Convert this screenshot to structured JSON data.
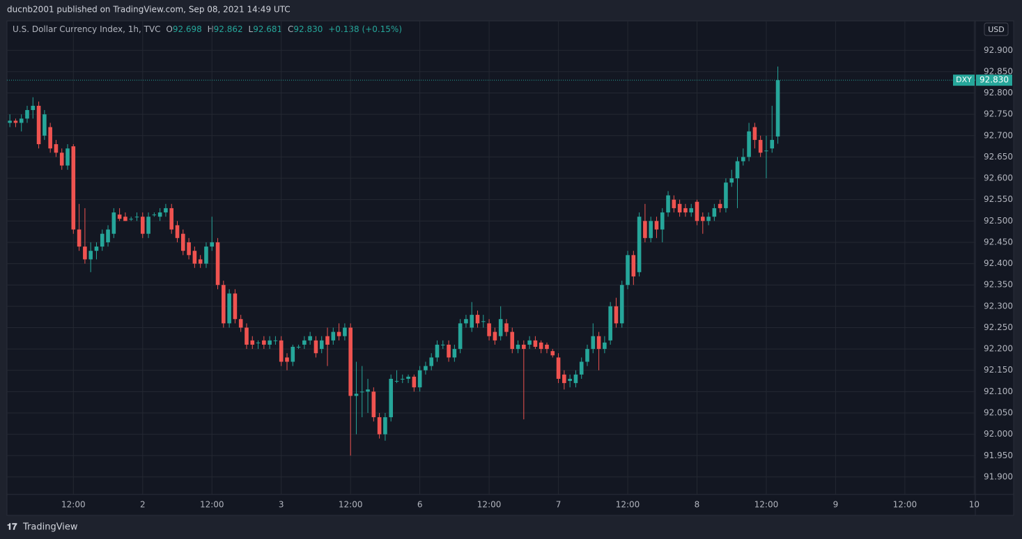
{
  "header": "ducnb2001 published on TradingView.com, Sep 08, 2021 14:49 UTC",
  "footer": "TradingView",
  "chart_data": {
    "type": "candlestick",
    "title": "U.S. Dollar Currency Index, 1h, TVC",
    "legend": {
      "open_label": "O",
      "open": "92.698",
      "high_label": "H",
      "high": "92.862",
      "low_label": "L",
      "low": "92.681",
      "close_label": "C",
      "close": "92.830",
      "change": "+0.138 (+0.15%)"
    },
    "symbol": "DXY",
    "last_price_label": "92.830",
    "currency": "USD",
    "up_color": "#26a69a",
    "down_color": "#ef5350",
    "grid": true,
    "candles": [
      [
        92.73,
        92.75,
        92.72,
        92.735
      ],
      [
        92.735,
        92.74,
        92.72,
        92.73
      ],
      [
        92.73,
        92.75,
        92.71,
        92.74
      ],
      [
        92.74,
        92.77,
        92.73,
        92.76
      ],
      [
        92.76,
        92.79,
        92.74,
        92.77
      ],
      [
        92.77,
        92.78,
        92.67,
        92.68
      ],
      [
        92.7,
        92.76,
        92.69,
        92.75
      ],
      [
        92.72,
        92.73,
        92.66,
        92.67
      ],
      [
        92.68,
        92.69,
        92.65,
        92.66
      ],
      [
        92.66,
        92.67,
        92.62,
        92.63
      ],
      [
        92.63,
        92.68,
        92.62,
        92.67
      ],
      [
        92.675,
        92.68,
        92.47,
        92.48
      ],
      [
        92.48,
        92.54,
        92.43,
        92.44
      ],
      [
        92.44,
        92.53,
        92.4,
        92.41
      ],
      [
        92.41,
        92.45,
        92.38,
        92.43
      ],
      [
        92.43,
        92.45,
        92.41,
        92.44
      ],
      [
        92.44,
        92.48,
        92.43,
        92.47
      ],
      [
        92.45,
        92.49,
        92.44,
        92.48
      ],
      [
        92.47,
        92.53,
        92.46,
        92.52
      ],
      [
        92.515,
        92.53,
        92.5,
        92.505
      ],
      [
        92.51,
        92.52,
        92.5,
        92.5
      ],
      [
        92.505,
        92.51,
        92.5,
        92.505
      ],
      [
        92.51,
        92.52,
        92.5,
        92.51
      ],
      [
        92.51,
        92.52,
        92.46,
        92.47
      ],
      [
        92.47,
        92.52,
        92.46,
        92.51
      ],
      [
        92.515,
        92.52,
        92.51,
        92.515
      ],
      [
        92.51,
        92.53,
        92.5,
        92.52
      ],
      [
        92.52,
        92.54,
        92.51,
        92.53
      ],
      [
        92.53,
        92.54,
        92.47,
        92.48
      ],
      [
        92.49,
        92.5,
        92.45,
        92.46
      ],
      [
        92.47,
        92.48,
        92.42,
        92.43
      ],
      [
        92.45,
        92.46,
        92.41,
        92.42
      ],
      [
        92.43,
        92.44,
        92.39,
        92.4
      ],
      [
        92.41,
        92.42,
        92.39,
        92.4
      ],
      [
        92.4,
        92.45,
        92.39,
        92.44
      ],
      [
        92.44,
        92.51,
        92.43,
        92.45
      ],
      [
        92.45,
        92.46,
        92.34,
        92.35
      ],
      [
        92.35,
        92.36,
        92.25,
        92.26
      ],
      [
        92.26,
        92.34,
        92.25,
        92.33
      ],
      [
        92.33,
        92.34,
        92.26,
        92.27
      ],
      [
        92.27,
        92.28,
        92.24,
        92.25
      ],
      [
        92.25,
        92.26,
        92.2,
        92.21
      ],
      [
        92.22,
        92.23,
        92.2,
        92.21
      ],
      [
        92.215,
        92.22,
        92.2,
        92.215
      ],
      [
        92.22,
        92.23,
        92.2,
        92.21
      ],
      [
        92.21,
        92.23,
        92.2,
        92.22
      ],
      [
        92.22,
        92.23,
        92.21,
        92.22
      ],
      [
        92.22,
        92.23,
        92.16,
        92.17
      ],
      [
        92.18,
        92.19,
        92.15,
        92.17
      ],
      [
        92.17,
        92.21,
        92.16,
        92.205
      ],
      [
        92.205,
        92.21,
        92.2,
        92.205
      ],
      [
        92.21,
        92.23,
        92.2,
        92.22
      ],
      [
        92.22,
        92.24,
        92.21,
        92.23
      ],
      [
        92.22,
        92.23,
        92.18,
        92.19
      ],
      [
        92.2,
        92.23,
        92.19,
        92.22
      ],
      [
        92.23,
        92.25,
        92.16,
        92.21
      ],
      [
        92.22,
        92.25,
        92.21,
        92.24
      ],
      [
        92.24,
        92.26,
        92.22,
        92.23
      ],
      [
        92.23,
        92.26,
        92.22,
        92.25
      ],
      [
        92.25,
        92.26,
        91.95,
        92.09
      ],
      [
        92.09,
        92.17,
        92.0,
        92.095
      ],
      [
        92.1,
        92.16,
        92.04,
        92.1
      ],
      [
        92.1,
        92.13,
        92.05,
        92.105
      ],
      [
        92.1,
        92.11,
        92.03,
        92.04
      ],
      [
        92.04,
        92.05,
        91.99,
        92.0
      ],
      [
        92.0,
        92.05,
        91.985,
        92.04
      ],
      [
        92.04,
        92.14,
        92.03,
        92.13
      ],
      [
        92.125,
        92.15,
        92.12,
        92.125
      ],
      [
        92.13,
        92.14,
        92.12,
        92.13
      ],
      [
        92.13,
        92.14,
        92.12,
        92.135
      ],
      [
        92.135,
        92.14,
        92.1,
        92.11
      ],
      [
        92.11,
        92.16,
        92.1,
        92.15
      ],
      [
        92.15,
        92.17,
        92.14,
        92.16
      ],
      [
        92.16,
        92.19,
        92.15,
        92.18
      ],
      [
        92.18,
        92.22,
        92.17,
        92.21
      ],
      [
        92.21,
        92.22,
        92.2,
        92.21
      ],
      [
        92.21,
        92.22,
        92.17,
        92.18
      ],
      [
        92.18,
        92.21,
        92.17,
        92.2
      ],
      [
        92.2,
        92.27,
        92.19,
        92.26
      ],
      [
        92.26,
        92.28,
        92.25,
        92.27
      ],
      [
        92.25,
        92.31,
        92.24,
        92.28
      ],
      [
        92.28,
        92.29,
        92.25,
        92.26
      ],
      [
        92.265,
        92.28,
        92.25,
        92.265
      ],
      [
        92.26,
        92.27,
        92.22,
        92.23
      ],
      [
        92.24,
        92.25,
        92.21,
        92.22
      ],
      [
        92.23,
        92.3,
        92.22,
        92.27
      ],
      [
        92.26,
        92.27,
        92.23,
        92.24
      ],
      [
        92.24,
        92.25,
        92.19,
        92.2
      ],
      [
        92.2,
        92.22,
        92.19,
        92.21
      ],
      [
        92.21,
        92.22,
        92.035,
        92.2
      ],
      [
        92.21,
        92.23,
        92.2,
        92.22
      ],
      [
        92.22,
        92.23,
        92.2,
        92.205
      ],
      [
        92.215,
        92.22,
        92.19,
        92.2
      ],
      [
        92.21,
        92.215,
        92.19,
        92.2
      ],
      [
        92.195,
        92.2,
        92.18,
        92.185
      ],
      [
        92.18,
        92.19,
        92.12,
        92.13
      ],
      [
        92.14,
        92.15,
        92.105,
        92.12
      ],
      [
        92.125,
        92.14,
        92.11,
        92.13
      ],
      [
        92.12,
        92.15,
        92.11,
        92.14
      ],
      [
        92.14,
        92.18,
        92.13,
        92.17
      ],
      [
        92.17,
        92.21,
        92.16,
        92.2
      ],
      [
        92.2,
        92.26,
        92.19,
        92.23
      ],
      [
        92.23,
        92.24,
        92.15,
        92.2
      ],
      [
        92.2,
        92.23,
        92.19,
        92.215
      ],
      [
        92.22,
        92.31,
        92.21,
        92.3
      ],
      [
        92.3,
        92.32,
        92.25,
        92.26
      ],
      [
        92.26,
        92.36,
        92.25,
        92.35
      ],
      [
        92.35,
        92.43,
        92.34,
        92.42
      ],
      [
        92.42,
        92.43,
        92.35,
        92.37
      ],
      [
        92.38,
        92.52,
        92.37,
        92.51
      ],
      [
        92.5,
        92.54,
        92.45,
        92.46
      ],
      [
        92.46,
        92.51,
        92.45,
        92.5
      ],
      [
        92.5,
        92.51,
        92.46,
        92.48
      ],
      [
        92.48,
        92.53,
        92.45,
        92.52
      ],
      [
        92.52,
        92.57,
        92.51,
        92.56
      ],
      [
        92.55,
        92.56,
        92.52,
        92.53
      ],
      [
        92.54,
        92.55,
        92.51,
        92.52
      ],
      [
        92.53,
        92.54,
        92.51,
        92.52
      ],
      [
        92.52,
        92.54,
        92.51,
        92.53
      ],
      [
        92.545,
        92.55,
        92.49,
        92.5
      ],
      [
        92.51,
        92.52,
        92.47,
        92.5
      ],
      [
        92.5,
        92.52,
        92.49,
        92.51
      ],
      [
        92.51,
        92.54,
        92.5,
        92.53
      ],
      [
        92.54,
        92.55,
        92.52,
        92.53
      ],
      [
        92.53,
        92.6,
        92.52,
        92.59
      ],
      [
        92.59,
        92.62,
        92.58,
        92.6
      ],
      [
        92.6,
        92.65,
        92.53,
        92.64
      ],
      [
        92.64,
        92.67,
        92.63,
        92.65
      ],
      [
        92.65,
        92.73,
        92.64,
        92.71
      ],
      [
        92.72,
        92.73,
        92.67,
        92.69
      ],
      [
        92.69,
        92.7,
        92.65,
        92.66
      ],
      [
        92.665,
        92.7,
        92.6,
        92.665
      ],
      [
        92.67,
        92.77,
        92.66,
        92.69
      ],
      [
        92.698,
        92.862,
        92.681,
        92.83
      ]
    ],
    "xlim": [
      -0.5,
      167.2
    ],
    "xticks": [
      {
        "value": 11,
        "label": "12:00"
      },
      {
        "value": 23,
        "label": "2"
      },
      {
        "value": 35,
        "label": "12:00"
      },
      {
        "value": 47,
        "label": "3"
      },
      {
        "value": 59,
        "label": "12:00"
      },
      {
        "value": 71,
        "label": "6"
      },
      {
        "value": 83,
        "label": "12:00"
      },
      {
        "value": 95,
        "label": "7"
      },
      {
        "value": 107,
        "label": "12:00"
      },
      {
        "value": 119,
        "label": "8"
      },
      {
        "value": 131,
        "label": "12:00"
      },
      {
        "value": 143,
        "label": "9"
      },
      {
        "value": 155,
        "label": "12:00"
      },
      {
        "value": 167,
        "label": "10"
      }
    ],
    "ylim": [
      91.859,
      92.969
    ],
    "yticks": [
      {
        "value": 91.9,
        "label": "91.900"
      },
      {
        "value": 91.95,
        "label": "91.950"
      },
      {
        "value": 92,
        "label": "92.000"
      },
      {
        "value": 92.05,
        "label": "92.050"
      },
      {
        "value": 92.1,
        "label": "92.100"
      },
      {
        "value": 92.15,
        "label": "92.150"
      },
      {
        "value": 92.2,
        "label": "92.200"
      },
      {
        "value": 92.25,
        "label": "92.250"
      },
      {
        "value": 92.3,
        "label": "92.300"
      },
      {
        "value": 92.35,
        "label": "92.350"
      },
      {
        "value": 92.4,
        "label": "92.400"
      },
      {
        "value": 92.45,
        "label": "92.450"
      },
      {
        "value": 92.5,
        "label": "92.500"
      },
      {
        "value": 92.55,
        "label": "92.550"
      },
      {
        "value": 92.6,
        "label": "92.600"
      },
      {
        "value": 92.65,
        "label": "92.650"
      },
      {
        "value": 92.7,
        "label": "92.700"
      },
      {
        "value": 92.75,
        "label": "92.750"
      },
      {
        "value": 92.8,
        "label": "92.800"
      },
      {
        "value": 92.85,
        "label": "92.850"
      },
      {
        "value": 92.9,
        "label": "92.900"
      }
    ]
  }
}
